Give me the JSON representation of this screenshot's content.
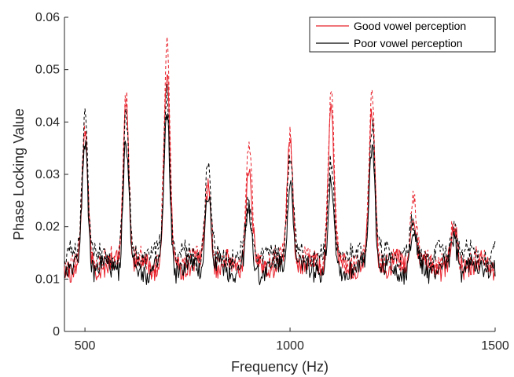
{
  "chart_data": {
    "type": "line",
    "title": "",
    "xlabel": "Frequency (Hz)",
    "ylabel": "Phase Locking Value",
    "xlim": [
      450,
      1500
    ],
    "ylim": [
      0,
      0.06
    ],
    "x_ticks": [
      500,
      1000,
      1500
    ],
    "x_tick_labels": [
      "500",
      "1000",
      "1500"
    ],
    "y_ticks": [
      0,
      0.01,
      0.02,
      0.03,
      0.04,
      0.05,
      0.06
    ],
    "y_tick_labels": [
      "0",
      "0.01",
      "0.02",
      "0.03",
      "0.04",
      "0.05",
      "0.06"
    ],
    "grid": false,
    "legend_position": "top-right",
    "legend": [
      {
        "label": "Good vowel perception",
        "color": "#e8202a"
      },
      {
        "label": "Poor vowel perception",
        "color": "#000000"
      }
    ],
    "peaks_x": [
      500,
      600,
      700,
      800,
      900,
      1000,
      1100,
      1200,
      1300,
      1400
    ],
    "series": [
      {
        "name": "Good vowel perception",
        "style": "solid",
        "color": "#e8202a",
        "baseline": 0.0125,
        "peaks": [
          0.037,
          0.044,
          0.049,
          0.028,
          0.032,
          0.036,
          0.043,
          0.041,
          0.023,
          0.019
        ]
      },
      {
        "name": "Good vowel perception",
        "style": "dashed",
        "color": "#e8202a",
        "baseline": 0.0135,
        "peaks": [
          0.038,
          0.046,
          0.054,
          0.031,
          0.035,
          0.038,
          0.045,
          0.045,
          0.026,
          0.02
        ]
      },
      {
        "name": "Poor vowel perception",
        "style": "solid",
        "color": "#000000",
        "baseline": 0.012,
        "peaks": [
          0.037,
          0.036,
          0.041,
          0.027,
          0.022,
          0.029,
          0.028,
          0.037,
          0.019,
          0.018
        ]
      },
      {
        "name": "Poor vowel perception",
        "style": "dashed",
        "color": "#000000",
        "baseline": 0.0145,
        "peaks": [
          0.042,
          0.04,
          0.047,
          0.032,
          0.025,
          0.034,
          0.032,
          0.041,
          0.02,
          0.021
        ]
      }
    ]
  }
}
